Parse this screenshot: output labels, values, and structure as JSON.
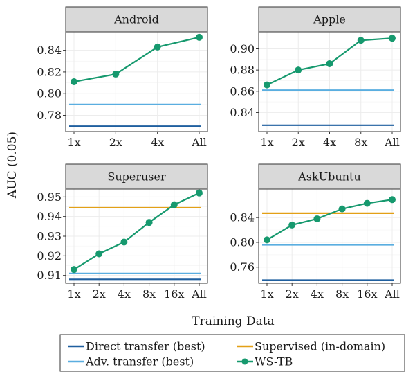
{
  "figure": {
    "ylabel": "AUC (0.05)",
    "xlabel": "Training Data"
  },
  "colors": {
    "direct": "#1f5f9f",
    "adv": "#5aaee0",
    "supervised": "#e3a016",
    "wstb": "#16996e",
    "strip_bg": "#d9d9d9",
    "grid": "#ececec"
  },
  "legend": [
    {
      "key": "direct",
      "label": "Direct transfer (best)",
      "style": "line"
    },
    {
      "key": "supervised",
      "label": "Supervised (in-domain)",
      "style": "line"
    },
    {
      "key": "adv",
      "label": "Adv. transfer (best)",
      "style": "line"
    },
    {
      "key": "wstb",
      "label": "WS-TB",
      "style": "line-point"
    }
  ],
  "chart_data": [
    {
      "type": "line",
      "title": "Android",
      "categories": [
        "1x",
        "2x",
        "4x",
        "All"
      ],
      "ylim": [
        0.765,
        0.857
      ],
      "yticks": [
        0.78,
        0.8,
        0.82,
        0.84
      ],
      "ytick_labels": [
        "0.78",
        "0.80",
        "0.82",
        "0.84"
      ],
      "series": [
        {
          "key": "wstb",
          "name": "WS-TB",
          "values": [
            0.811,
            0.818,
            0.843,
            0.852
          ]
        }
      ],
      "reference_lines": [
        {
          "key": "direct",
          "name": "Direct transfer (best)",
          "value": 0.77
        },
        {
          "key": "adv",
          "name": "Adv. transfer (best)",
          "value": 0.79
        }
      ]
    },
    {
      "type": "line",
      "title": "Apple",
      "categories": [
        "1x",
        "2x",
        "4x",
        "8x",
        "All"
      ],
      "ylim": [
        0.822,
        0.916
      ],
      "yticks": [
        0.84,
        0.86,
        0.88,
        0.9
      ],
      "ytick_labels": [
        "0.84",
        "0.86",
        "0.88",
        "0.90"
      ],
      "series": [
        {
          "key": "wstb",
          "name": "WS-TB",
          "values": [
            0.866,
            0.88,
            0.886,
            0.908,
            0.91
          ]
        }
      ],
      "reference_lines": [
        {
          "key": "direct",
          "name": "Direct transfer (best)",
          "value": 0.828
        },
        {
          "key": "adv",
          "name": "Adv. transfer (best)",
          "value": 0.861
        }
      ]
    },
    {
      "type": "line",
      "title": "Superuser",
      "categories": [
        "1x",
        "2x",
        "4x",
        "8x",
        "16x",
        "All"
      ],
      "ylim": [
        0.906,
        0.954
      ],
      "yticks": [
        0.91,
        0.92,
        0.93,
        0.94,
        0.95
      ],
      "ytick_labels": [
        "0.91",
        "0.92",
        "0.93",
        "0.94",
        "0.95"
      ],
      "series": [
        {
          "key": "wstb",
          "name": "WS-TB",
          "values": [
            0.913,
            0.921,
            0.927,
            0.937,
            0.946,
            0.952
          ]
        }
      ],
      "reference_lines": [
        {
          "key": "direct",
          "name": "Direct transfer (best)",
          "value": 0.908
        },
        {
          "key": "adv",
          "name": "Adv. transfer (best)",
          "value": 0.911
        },
        {
          "key": "supervised",
          "name": "Supervised (in-domain)",
          "value": 0.9445
        }
      ]
    },
    {
      "type": "line",
      "title": "AskUbuntu",
      "categories": [
        "1x",
        "2x",
        "4x",
        "8x",
        "16x",
        "All"
      ],
      "ylim": [
        0.734,
        0.886
      ],
      "yticks": [
        0.76,
        0.8,
        0.84
      ],
      "ytick_labels": [
        "0.76",
        "0.80",
        "0.84"
      ],
      "series": [
        {
          "key": "wstb",
          "name": "WS-TB",
          "values": [
            0.804,
            0.828,
            0.838,
            0.854,
            0.863,
            0.869
          ]
        }
      ],
      "reference_lines": [
        {
          "key": "direct",
          "name": "Direct transfer (best)",
          "value": 0.739
        },
        {
          "key": "adv",
          "name": "Adv. transfer (best)",
          "value": 0.796
        },
        {
          "key": "supervised",
          "name": "Supervised (in-domain)",
          "value": 0.847
        }
      ]
    }
  ]
}
